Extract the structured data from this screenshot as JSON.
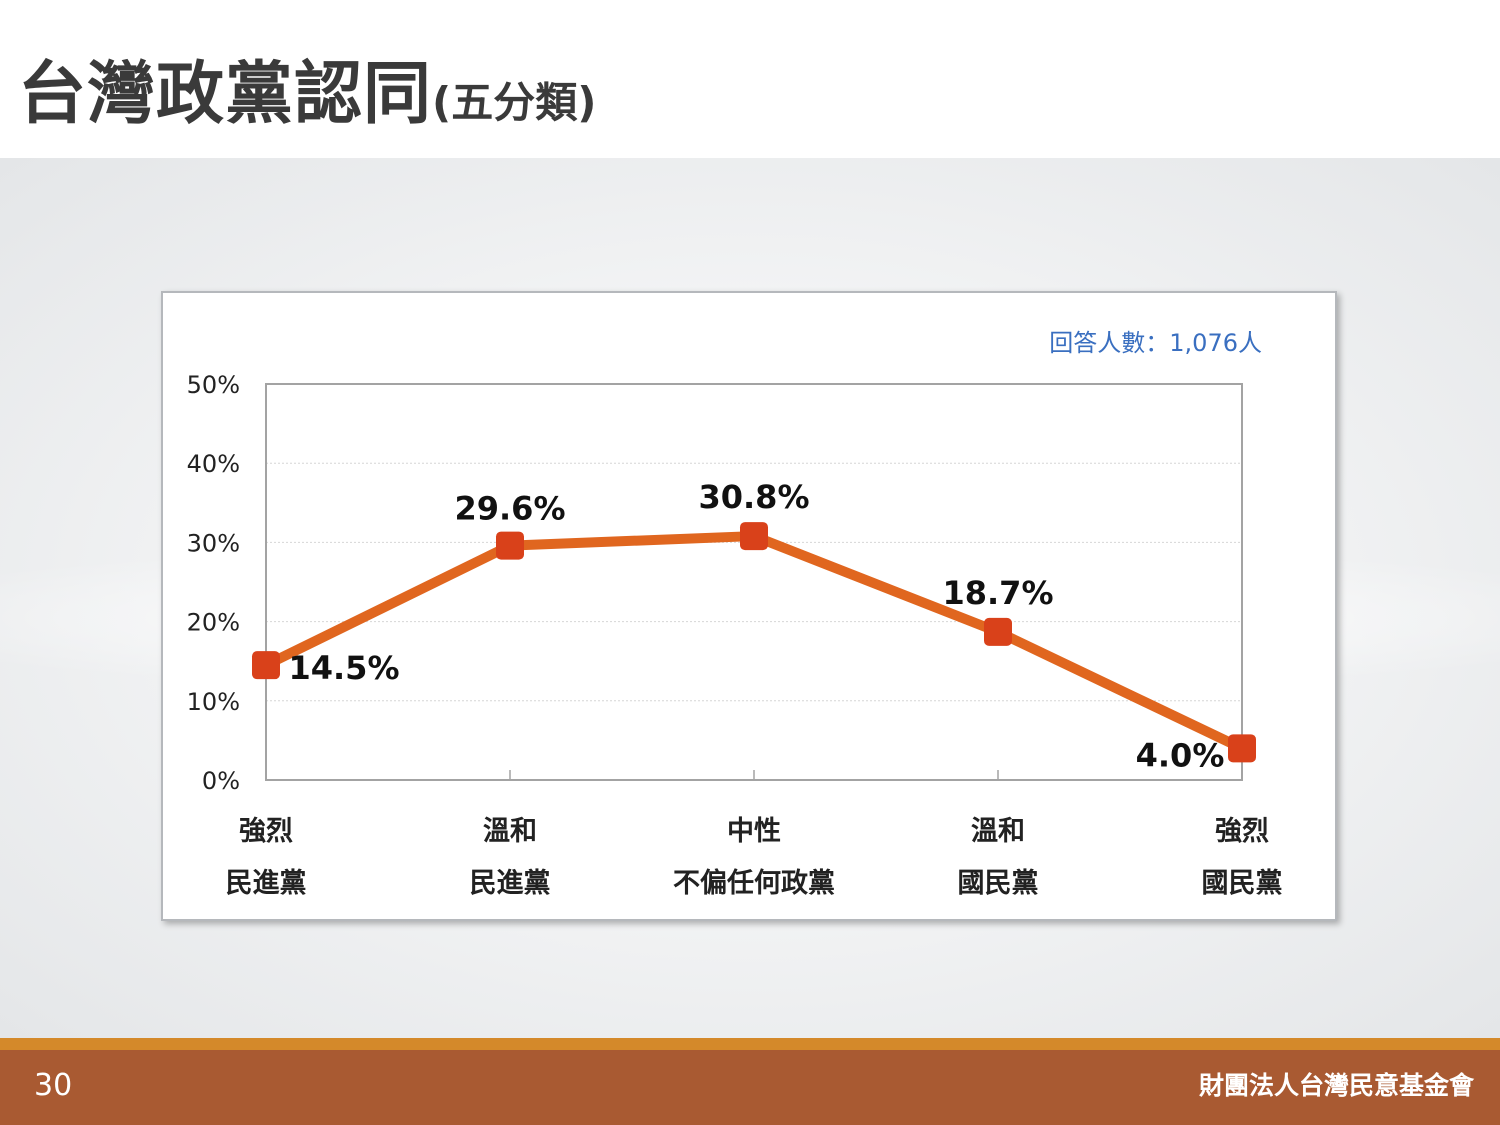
{
  "header": {
    "title": "台灣政黨認同",
    "subtitle": "(五分類)"
  },
  "footer": {
    "page_number": "30",
    "organization": "財團法人台灣民意基金會"
  },
  "chart_data": {
    "type": "line",
    "note": "回答人數：1,076人",
    "categories": [
      [
        "強烈",
        "民進黨"
      ],
      [
        "溫和",
        "民進黨"
      ],
      [
        "中性",
        "不偏任何政黨"
      ],
      [
        "溫和",
        "國民黨"
      ],
      [
        "強烈",
        "國民黨"
      ]
    ],
    "values": [
      14.5,
      29.6,
      30.8,
      18.7,
      4.0
    ],
    "data_labels": [
      "14.5%",
      "29.6%",
      "30.8%",
      "18.7%",
      "4.0%"
    ],
    "y_ticks": [
      0,
      10,
      20,
      30,
      40,
      50
    ],
    "y_tick_labels": [
      "0%",
      "10%",
      "20%",
      "30%",
      "40%",
      "50%"
    ],
    "ylim": [
      0,
      50
    ],
    "grid": true,
    "colors": {
      "line": "#e0661f",
      "marker": "#d9411a",
      "note": "#3a6fc0"
    }
  }
}
